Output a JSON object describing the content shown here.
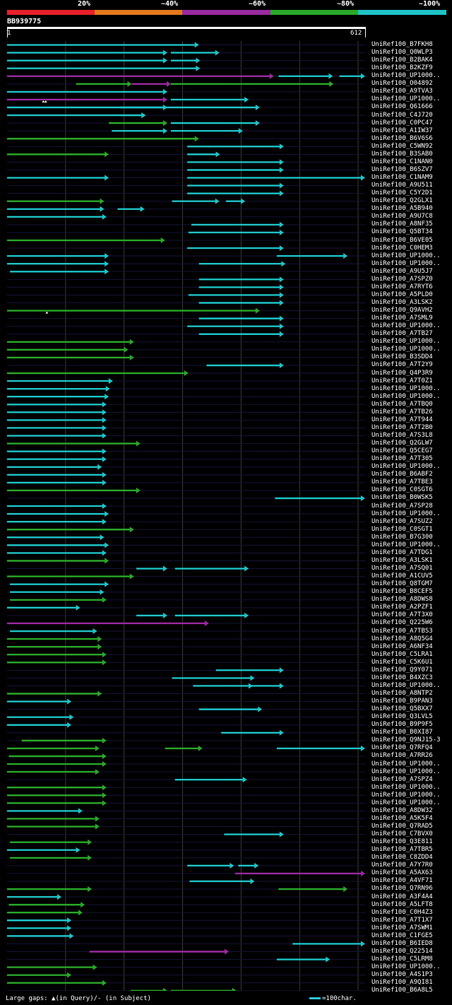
{
  "legend": {
    "labels": [
      "20%",
      "~40%",
      "~60%",
      "~80%",
      "~100%"
    ],
    "colors": [
      "#e8202a",
      "#e57a1e",
      "#9a2aa0",
      "#2aa82a",
      "#1ec4c8"
    ]
  },
  "query": {
    "name": "BB939775",
    "start": "1",
    "end": "612",
    "length": 612
  },
  "footer": {
    "left": "Large gaps: ▲(in Query)/- (in Subject)",
    "right": "=100char."
  },
  "hits": [
    {
      "label": "UniRef100_B7FKH8",
      "segs": [
        [
          0,
          328,
          4
        ]
      ]
    },
    {
      "label": "UniRef100_Q0WLP3",
      "segs": [
        [
          0,
          274,
          4
        ],
        [
          280,
          363,
          4
        ]
      ]
    },
    {
      "label": "UniRef100_B2BAK4",
      "segs": [
        [
          0,
          274,
          4
        ],
        [
          280,
          330,
          4
        ]
      ]
    },
    {
      "label": "UniRef100_B2KZF9",
      "segs": [
        [
          0,
          330,
          4
        ]
      ]
    },
    {
      "label": "UniRef100_UP1000..",
      "segs": [
        [
          0,
          456,
          2
        ],
        [
          464,
          557,
          4
        ],
        [
          568,
          612,
          4
        ]
      ]
    },
    {
      "label": "UniRef100_O04892",
      "segs": [
        [
          118,
          213,
          3
        ],
        [
          213,
          280,
          2
        ],
        [
          280,
          558,
          3
        ]
      ]
    },
    {
      "label": "UniRef100_A9TVA3",
      "segs": [
        [
          0,
          274,
          4
        ]
      ]
    },
    {
      "label": "UniRef100_UP1000..",
      "segs": [
        [
          0,
          274,
          2
        ],
        [
          280,
          413,
          4
        ]
      ],
      "marks": [
        [
          62,
          0
        ],
        [
          66,
          0
        ]
      ]
    },
    {
      "label": "UniRef100_Q61666",
      "segs": [
        [
          0,
          274,
          4
        ],
        [
          193,
          432,
          4
        ]
      ]
    },
    {
      "label": "UniRef100_C4J720",
      "segs": [
        [
          0,
          237,
          4
        ],
        [
          193,
          237,
          4
        ]
      ]
    },
    {
      "label": "UniRef100_C0PC47",
      "segs": [
        [
          174,
          274,
          3
        ],
        [
          280,
          432,
          4
        ]
      ]
    },
    {
      "label": "UniRef100_A1IW37",
      "segs": [
        [
          179,
          274,
          4
        ],
        [
          280,
          403,
          4
        ]
      ]
    },
    {
      "label": "UniRef100_B6V6S6",
      "segs": [
        [
          0,
          328,
          3
        ]
      ]
    },
    {
      "label": "UniRef100_C5WN92",
      "segs": [
        [
          308,
          473,
          4
        ]
      ]
    },
    {
      "label": "UniRef100_B3SAB0",
      "segs": [
        [
          0,
          174,
          3
        ],
        [
          308,
          364,
          4
        ]
      ]
    },
    {
      "label": "UniRef100_C1NAN0",
      "segs": [
        [
          308,
          473,
          4
        ]
      ]
    },
    {
      "label": "UniRef100_B6SZV7",
      "segs": [
        [
          308,
          473,
          4
        ]
      ]
    },
    {
      "label": "UniRef100_C1NAM9",
      "segs": [
        [
          0,
          174,
          4
        ],
        [
          308,
          612,
          4
        ]
      ]
    },
    {
      "label": "UniRef100_A9U511",
      "segs": [
        [
          308,
          473,
          4
        ]
      ]
    },
    {
      "label": "UniRef100_C5Y2D1",
      "segs": [
        [
          308,
          473,
          4
        ]
      ]
    },
    {
      "label": "UniRef100_Q2GLX1",
      "segs": [
        [
          0,
          166,
          3
        ],
        [
          282,
          363,
          4
        ],
        [
          374,
          407,
          4
        ]
      ]
    },
    {
      "label": "UniRef100_A5B940",
      "segs": [
        [
          0,
          166,
          4
        ],
        [
          189,
          235,
          4
        ]
      ]
    },
    {
      "label": "UniRef100_A9U7C8",
      "segs": [
        [
          0,
          170,
          4
        ]
      ]
    },
    {
      "label": "UniRef100_A8NF35",
      "segs": [
        [
          315,
          473,
          4
        ]
      ]
    },
    {
      "label": "UniRef100_Q5BT34",
      "segs": [
        [
          310,
          473,
          4
        ]
      ]
    },
    {
      "label": "UniRef100_B6VE05",
      "segs": [
        [
          0,
          270,
          3
        ]
      ]
    },
    {
      "label": "UniRef100_C0HEM3",
      "segs": [
        [
          308,
          473,
          4
        ]
      ]
    },
    {
      "label": "UniRef100_UP1000..",
      "segs": [
        [
          0,
          174,
          4
        ],
        [
          461,
          582,
          4
        ]
      ]
    },
    {
      "label": "UniRef100_UP1000..",
      "segs": [
        [
          0,
          174,
          4
        ],
        [
          328,
          476,
          4
        ]
      ]
    },
    {
      "label": "UniRef100_A9U5J7",
      "segs": [
        [
          5,
          174,
          4
        ]
      ]
    },
    {
      "label": "UniRef100_A7SPZ0",
      "segs": [
        [
          328,
          473,
          4
        ]
      ]
    },
    {
      "label": "UniRef100_A7RYT6",
      "segs": [
        [
          328,
          473,
          4
        ]
      ]
    },
    {
      "label": "UniRef100_A5PLD0",
      "segs": [
        [
          310,
          473,
          4
        ]
      ]
    },
    {
      "label": "UniRef100_A3LSK2",
      "segs": [
        [
          328,
          473,
          4
        ]
      ]
    },
    {
      "label": "UniRef100_Q9AVH2",
      "segs": [
        [
          0,
          432,
          3
        ]
      ],
      "marks": [
        [
          68,
          0
        ]
      ]
    },
    {
      "label": "UniRef100_A7SML9",
      "segs": [
        [
          328,
          473,
          4
        ]
      ]
    },
    {
      "label": "UniRef100_UP1000..",
      "segs": [
        [
          308,
          473,
          4
        ]
      ]
    },
    {
      "label": "UniRef100_A7TB27",
      "segs": [
        [
          328,
          473,
          4
        ]
      ]
    },
    {
      "label": "UniRef100_UP1000..",
      "segs": [
        [
          0,
          217,
          3
        ]
      ]
    },
    {
      "label": "UniRef100_UP1000..",
      "segs": [
        [
          0,
          207,
          3
        ]
      ]
    },
    {
      "label": "UniRef100_B3SDD4",
      "segs": [
        [
          0,
          217,
          3
        ]
      ]
    },
    {
      "label": "UniRef100_A7T2Y9",
      "segs": [
        [
          341,
          473,
          4
        ]
      ]
    },
    {
      "label": "UniRef100_Q4P3R9",
      "segs": [
        [
          0,
          310,
          3
        ]
      ]
    },
    {
      "label": "UniRef100_A7T0Z1",
      "segs": [
        [
          0,
          181,
          4
        ]
      ]
    },
    {
      "label": "UniRef100_UP1000..",
      "segs": [
        [
          0,
          176,
          4
        ]
      ]
    },
    {
      "label": "UniRef100_UP1000..",
      "segs": [
        [
          0,
          174,
          4
        ]
      ]
    },
    {
      "label": "UniRef100_A7TBQ0",
      "segs": [
        [
          0,
          170,
          4
        ]
      ]
    },
    {
      "label": "UniRef100_A7TB26",
      "segs": [
        [
          0,
          170,
          4
        ]
      ]
    },
    {
      "label": "UniRef100_A7T944",
      "segs": [
        [
          0,
          170,
          4
        ]
      ]
    },
    {
      "label": "UniRef100_A7T2B0",
      "segs": [
        [
          0,
          170,
          4
        ]
      ]
    },
    {
      "label": "UniRef100_A7S3L8",
      "segs": [
        [
          0,
          170,
          4
        ]
      ]
    },
    {
      "label": "UniRef100_Q2GLW7",
      "segs": [
        [
          0,
          228,
          3
        ]
      ]
    },
    {
      "label": "UniRef100_Q5CEG7",
      "segs": [
        [
          0,
          170,
          4
        ]
      ]
    },
    {
      "label": "UniRef100_A7T305",
      "segs": [
        [
          0,
          170,
          4
        ]
      ]
    },
    {
      "label": "UniRef100_UP1000..",
      "segs": [
        [
          0,
          162,
          4
        ]
      ]
    },
    {
      "label": "UniRef100_B6ABF2",
      "segs": [
        [
          0,
          170,
          4
        ]
      ]
    },
    {
      "label": "UniRef100_A7TBE3",
      "segs": [
        [
          0,
          170,
          4
        ]
      ]
    },
    {
      "label": "UniRef100_C0SGT6",
      "segs": [
        [
          0,
          228,
          3
        ]
      ]
    },
    {
      "label": "UniRef100_B0WSK5",
      "segs": [
        [
          458,
          612,
          4
        ]
      ]
    },
    {
      "label": "UniRef100_A7SP28",
      "segs": [
        [
          0,
          170,
          4
        ]
      ]
    },
    {
      "label": "UniRef100_UP1000..",
      "segs": [
        [
          0,
          174,
          4
        ]
      ]
    },
    {
      "label": "UniRef100_A7SUZ2",
      "segs": [
        [
          0,
          170,
          4
        ]
      ]
    },
    {
      "label": "UniRef100_C0SGT1",
      "segs": [
        [
          0,
          217,
          3
        ]
      ]
    },
    {
      "label": "UniRef100_B7G300",
      "segs": [
        [
          0,
          166,
          4
        ]
      ]
    },
    {
      "label": "UniRef100_UP1000..",
      "segs": [
        [
          0,
          174,
          4
        ]
      ]
    },
    {
      "label": "UniRef100_A7TDG1",
      "segs": [
        [
          0,
          170,
          4
        ]
      ]
    },
    {
      "label": "UniRef100_A3LSK1",
      "segs": [
        [
          0,
          174,
          3
        ]
      ]
    },
    {
      "label": "UniRef100_A7SQ01",
      "segs": [
        [
          221,
          274,
          4
        ],
        [
          287,
          413,
          4
        ]
      ]
    },
    {
      "label": "UniRef100_A1CUV5",
      "segs": [
        [
          0,
          217,
          3
        ]
      ]
    },
    {
      "label": "UniRef100_Q8TGM7",
      "segs": [
        [
          5,
          174,
          4
        ]
      ]
    },
    {
      "label": "UniRef100_B8CEF5",
      "segs": [
        [
          5,
          166,
          4
        ]
      ]
    },
    {
      "label": "UniRef100_A8DWS8",
      "segs": [
        [
          5,
          170,
          3
        ]
      ]
    },
    {
      "label": "UniRef100_A2PZF1",
      "segs": [
        [
          0,
          125,
          4
        ]
      ]
    },
    {
      "label": "UniRef100_A7T3X0",
      "segs": [
        [
          221,
          274,
          4
        ],
        [
          287,
          413,
          4
        ]
      ]
    },
    {
      "label": "UniRef100_Q225W6",
      "segs": [
        [
          0,
          345,
          2
        ]
      ]
    },
    {
      "label": "UniRef100_A7TBS3",
      "segs": [
        [
          5,
          154,
          4
        ]
      ]
    },
    {
      "label": "UniRef100_A8Q5G4",
      "segs": [
        [
          0,
          162,
          3
        ]
      ]
    },
    {
      "label": "UniRef100_A6NF34",
      "segs": [
        [
          0,
          162,
          3
        ]
      ]
    },
    {
      "label": "UniRef100_C5LRA1",
      "segs": [
        [
          0,
          170,
          3
        ]
      ]
    },
    {
      "label": "UniRef100_C5K6U1",
      "segs": [
        [
          0,
          170,
          3
        ]
      ]
    },
    {
      "label": "UniRef100_Q9Y071",
      "segs": [
        [
          357,
          473,
          4
        ]
      ]
    },
    {
      "label": "UniRef100_B4XZC3",
      "segs": [
        [
          282,
          423,
          4
        ]
      ]
    },
    {
      "label": "UniRef100_UP1000..",
      "segs": [
        [
          318,
          473,
          4
        ],
        [
          413,
          420,
          4
        ]
      ]
    },
    {
      "label": "UniRef100_A8NTP2",
      "segs": [
        [
          0,
          162,
          3
        ]
      ]
    },
    {
      "label": "UniRef100_B9PAN3",
      "segs": [
        [
          0,
          110,
          4
        ]
      ]
    },
    {
      "label": "UniRef100_Q5BXX7",
      "segs": [
        [
          328,
          436,
          4
        ]
      ]
    },
    {
      "label": "UniRef100_Q3LVL5",
      "segs": [
        [
          0,
          114,
          4
        ]
      ]
    },
    {
      "label": "UniRef100_B9P9F5",
      "segs": [
        [
          0,
          110,
          4
        ]
      ]
    },
    {
      "label": "UniRef100_B0XI87",
      "segs": [
        [
          366,
          473,
          4
        ]
      ]
    },
    {
      "label": "UniRef100_Q9NJ15-3",
      "segs": [
        [
          25,
          170,
          3
        ]
      ]
    },
    {
      "label": "UniRef100_Q7RFQ4",
      "segs": [
        [
          0,
          158,
          3
        ],
        [
          270,
          334,
          3
        ],
        [
          461,
          612,
          4
        ]
      ]
    },
    {
      "label": "UniRef100_A7RR26",
      "segs": [
        [
          3,
          170,
          3
        ]
      ]
    },
    {
      "label": "UniRef100_UP1000..",
      "segs": [
        [
          0,
          170,
          3
        ]
      ]
    },
    {
      "label": "UniRef100_UP1000..",
      "segs": [
        [
          0,
          158,
          3
        ]
      ]
    },
    {
      "label": "UniRef100_A7SPZ4",
      "segs": [
        [
          287,
          410,
          4
        ]
      ]
    },
    {
      "label": "UniRef100_UP1000..",
      "segs": [
        [
          0,
          170,
          3
        ]
      ]
    },
    {
      "label": "UniRef100_UP1000..",
      "segs": [
        [
          0,
          170,
          3
        ]
      ]
    },
    {
      "label": "UniRef100_UP1000..",
      "segs": [
        [
          0,
          170,
          3
        ]
      ]
    },
    {
      "label": "UniRef100_A8DW32",
      "segs": [
        [
          0,
          129,
          4
        ]
      ]
    },
    {
      "label": "UniRef100_A5K5F4",
      "segs": [
        [
          0,
          158,
          3
        ]
      ]
    },
    {
      "label": "UniRef100_Q7RAD5",
      "segs": [
        [
          0,
          158,
          3
        ]
      ]
    },
    {
      "label": "UniRef100_C7BVX0",
      "segs": [
        [
          371,
          473,
          4
        ]
      ]
    },
    {
      "label": "UniRef100_Q3E811",
      "segs": [
        [
          5,
          145,
          3
        ]
      ]
    },
    {
      "label": "UniRef100_A7TBR5",
      "segs": [
        [
          0,
          125,
          4
        ]
      ]
    },
    {
      "label": "UniRef100_C8ZDD4",
      "segs": [
        [
          5,
          145,
          3
        ]
      ]
    },
    {
      "label": "UniRef100_A7Y7R0",
      "segs": [
        [
          308,
          388,
          4
        ],
        [
          395,
          430,
          4
        ]
      ]
    },
    {
      "label": "UniRef100_A5AX63",
      "segs": [
        [
          390,
          612,
          2
        ]
      ]
    },
    {
      "label": "UniRef100_A4VF71",
      "segs": [
        [
          312,
          423,
          4
        ]
      ]
    },
    {
      "label": "UniRef100_Q7RN96",
      "segs": [
        [
          0,
          145,
          3
        ],
        [
          464,
          582,
          3
        ]
      ]
    },
    {
      "label": "UniRef100_A3F4A4",
      "segs": [
        [
          0,
          93,
          4
        ]
      ]
    },
    {
      "label": "UniRef100_A5LFT8",
      "segs": [
        [
          3,
          133,
          3
        ]
      ]
    },
    {
      "label": "UniRef100_C0H4Z3",
      "segs": [
        [
          0,
          129,
          3
        ]
      ]
    },
    {
      "label": "UniRef100_A7T1X7",
      "segs": [
        [
          0,
          110,
          4
        ]
      ]
    },
    {
      "label": "UniRef100_A7SWM1",
      "segs": [
        [
          0,
          110,
          4
        ]
      ]
    },
    {
      "label": "UniRef100_C1FGE5",
      "segs": [
        [
          0,
          114,
          4
        ]
      ]
    },
    {
      "label": "UniRef100_B6IED8",
      "segs": [
        [
          488,
          612,
          4
        ]
      ]
    },
    {
      "label": "UniRef100_Q22514",
      "segs": [
        [
          141,
          379,
          2
        ]
      ]
    },
    {
      "label": "UniRef100_C5LRM8",
      "segs": [
        [
          461,
          552,
          4
        ]
      ]
    },
    {
      "label": "UniRef100_UP1000..",
      "segs": [
        [
          0,
          154,
          3
        ]
      ]
    },
    {
      "label": "UniRef100_A4S1P3",
      "segs": [
        [
          0,
          110,
          3
        ]
      ]
    },
    {
      "label": "UniRef100_A9QI81",
      "segs": [
        [
          0,
          170,
          3
        ]
      ]
    },
    {
      "label": "UniRef100_B6A8L5",
      "segs": [
        [
          211,
          274,
          3
        ],
        [
          280,
          392,
          3
        ]
      ]
    }
  ]
}
